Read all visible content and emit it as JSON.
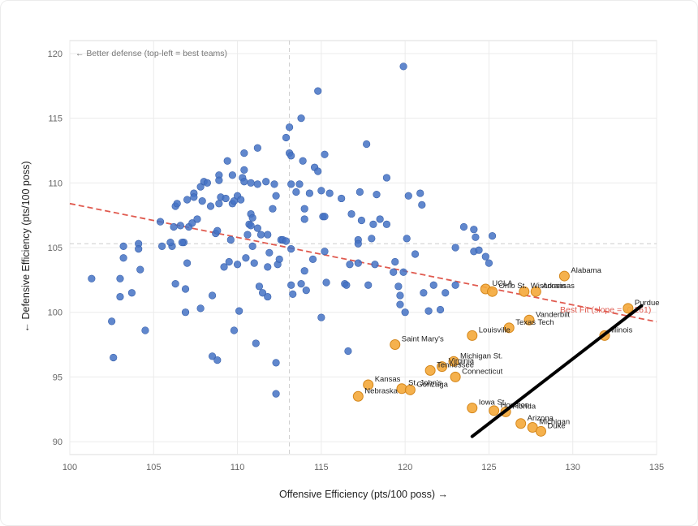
{
  "chart_data": {
    "type": "scatter",
    "title": "",
    "xlabel": "Offensive Efficiency (pts/100 poss) →",
    "ylabel": "← Defensive Efficiency (pts/100 poss)",
    "xlim": [
      100,
      135
    ],
    "ylim": [
      89,
      121
    ],
    "xticks": [
      100,
      105,
      110,
      115,
      120,
      125,
      130,
      135
    ],
    "yticks": [
      90,
      95,
      100,
      105,
      110,
      115,
      120
    ],
    "grid": true,
    "mean_lines": {
      "x": 113.1,
      "y": 105.3
    },
    "annotation": "← Better defense (top-left = best teams)",
    "fit_line": {
      "label": "Best Fit (slope = -0.261)",
      "slope": -0.261,
      "intercept": 134.5,
      "x_range": [
        100,
        135
      ]
    },
    "series": [
      {
        "name": "Other teams",
        "color": "#4472c4",
        "points": [
          [
            101.3,
            102.6
          ],
          [
            102.5,
            99.3
          ],
          [
            102.6,
            96.5
          ],
          [
            103.0,
            101.2
          ],
          [
            103.0,
            102.6
          ],
          [
            103.2,
            104.2
          ],
          [
            103.2,
            105.1
          ],
          [
            103.7,
            101.5
          ],
          [
            104.1,
            105.3
          ],
          [
            104.2,
            103.3
          ],
          [
            104.5,
            98.6
          ],
          [
            104.1,
            104.9
          ],
          [
            105.4,
            107.0
          ],
          [
            105.5,
            105.1
          ],
          [
            106.1,
            105.1
          ],
          [
            106.2,
            106.6
          ],
          [
            106.3,
            108.2
          ],
          [
            106.4,
            108.4
          ],
          [
            106.6,
            106.7
          ],
          [
            106.8,
            105.4
          ],
          [
            106.7,
            105.4
          ],
          [
            107.0,
            108.7
          ],
          [
            107.1,
            106.6
          ],
          [
            107.3,
            106.9
          ],
          [
            107.4,
            109.2
          ],
          [
            107.4,
            108.9
          ],
          [
            107.6,
            107.2
          ],
          [
            107.8,
            109.7
          ],
          [
            107.9,
            108.6
          ],
          [
            107.8,
            100.3
          ],
          [
            107.0,
            103.8
          ],
          [
            106.9,
            101.8
          ],
          [
            106.9,
            100.0
          ],
          [
            106.3,
            102.2
          ],
          [
            106.0,
            105.4
          ],
          [
            108.0,
            110.1
          ],
          [
            108.2,
            110.0
          ],
          [
            108.4,
            108.2
          ],
          [
            108.5,
            101.3
          ],
          [
            108.5,
            96.6
          ],
          [
            108.7,
            106.1
          ],
          [
            108.8,
            106.3
          ],
          [
            108.9,
            108.4
          ],
          [
            108.8,
            96.3
          ],
          [
            108.9,
            110.6
          ],
          [
            108.9,
            110.2
          ],
          [
            109.0,
            108.9
          ],
          [
            109.2,
            103.5
          ],
          [
            109.3,
            108.8
          ],
          [
            109.4,
            111.7
          ],
          [
            109.6,
            105.6
          ],
          [
            109.5,
            103.9
          ],
          [
            109.7,
            108.4
          ],
          [
            109.8,
            108.6
          ],
          [
            109.8,
            98.6
          ],
          [
            109.7,
            110.6
          ],
          [
            110.0,
            109.0
          ],
          [
            110.0,
            103.7
          ],
          [
            110.1,
            100.1
          ],
          [
            110.2,
            108.7
          ],
          [
            110.3,
            110.4
          ],
          [
            110.4,
            112.3
          ],
          [
            110.4,
            111.0
          ],
          [
            110.4,
            110.1
          ],
          [
            110.5,
            104.2
          ],
          [
            110.6,
            106.0
          ],
          [
            110.7,
            106.8
          ],
          [
            110.8,
            106.7
          ],
          [
            110.8,
            107.6
          ],
          [
            110.9,
            107.3
          ],
          [
            110.8,
            110.0
          ],
          [
            110.9,
            105.1
          ],
          [
            111.0,
            103.8
          ],
          [
            111.1,
            97.6
          ],
          [
            111.2,
            109.9
          ],
          [
            111.2,
            106.5
          ],
          [
            111.2,
            112.7
          ],
          [
            111.3,
            102.0
          ],
          [
            111.4,
            106.0
          ],
          [
            111.5,
            101.5
          ],
          [
            111.7,
            110.1
          ],
          [
            111.8,
            106.0
          ],
          [
            111.9,
            104.6
          ],
          [
            111.8,
            103.5
          ],
          [
            111.8,
            101.2
          ],
          [
            112.1,
            108.0
          ],
          [
            112.2,
            109.9
          ],
          [
            112.3,
            96.1
          ],
          [
            112.3,
            109.0
          ],
          [
            112.3,
            93.7
          ],
          [
            112.4,
            103.7
          ],
          [
            112.5,
            104.1
          ],
          [
            112.6,
            105.6
          ],
          [
            112.7,
            105.6
          ],
          [
            112.9,
            105.5
          ],
          [
            112.9,
            113.5
          ],
          [
            113.1,
            114.3
          ],
          [
            113.1,
            112.3
          ],
          [
            113.2,
            112.1
          ],
          [
            113.2,
            109.9
          ],
          [
            113.2,
            104.9
          ],
          [
            113.2,
            102.1
          ],
          [
            113.3,
            101.4
          ],
          [
            113.5,
            109.3
          ],
          [
            113.7,
            109.9
          ],
          [
            113.8,
            102.2
          ],
          [
            113.8,
            115.0
          ],
          [
            113.9,
            111.7
          ],
          [
            114.0,
            108.0
          ],
          [
            114.0,
            107.2
          ],
          [
            114.0,
            103.2
          ],
          [
            114.1,
            101.7
          ],
          [
            114.3,
            109.2
          ],
          [
            114.5,
            104.1
          ],
          [
            114.6,
            111.2
          ],
          [
            114.8,
            110.9
          ],
          [
            114.8,
            117.1
          ],
          [
            115.0,
            109.4
          ],
          [
            115.0,
            99.6
          ],
          [
            115.1,
            107.4
          ],
          [
            115.2,
            112.2
          ],
          [
            115.2,
            107.4
          ],
          [
            115.3,
            102.3
          ],
          [
            115.2,
            104.7
          ],
          [
            115.5,
            109.2
          ],
          [
            116.2,
            108.8
          ],
          [
            116.4,
            102.2
          ],
          [
            116.5,
            102.1
          ],
          [
            116.6,
            97.0
          ],
          [
            116.7,
            103.7
          ],
          [
            116.8,
            107.6
          ],
          [
            117.2,
            105.6
          ],
          [
            117.2,
            105.3
          ],
          [
            117.3,
            109.3
          ],
          [
            117.4,
            107.1
          ],
          [
            117.2,
            103.8
          ],
          [
            117.7,
            113.0
          ],
          [
            117.8,
            102.1
          ],
          [
            118.0,
            105.7
          ],
          [
            118.1,
            106.8
          ],
          [
            118.2,
            103.7
          ],
          [
            118.3,
            109.1
          ],
          [
            118.5,
            107.2
          ],
          [
            118.9,
            106.8
          ],
          [
            118.9,
            110.4
          ],
          [
            119.3,
            103.1
          ],
          [
            119.4,
            103.9
          ],
          [
            119.6,
            102.0
          ],
          [
            119.7,
            100.6
          ],
          [
            119.7,
            101.3
          ],
          [
            119.9,
            103.1
          ],
          [
            120.0,
            100.0
          ],
          [
            120.1,
            105.7
          ],
          [
            120.2,
            109.0
          ],
          [
            120.6,
            104.5
          ],
          [
            120.9,
            109.2
          ],
          [
            121.0,
            108.3
          ],
          [
            121.1,
            101.5
          ],
          [
            121.4,
            100.1
          ],
          [
            121.7,
            102.1
          ],
          [
            122.1,
            100.2
          ],
          [
            119.9,
            119.0
          ],
          [
            123.0,
            105.0
          ],
          [
            123.5,
            106.6
          ],
          [
            124.1,
            106.4
          ],
          [
            124.2,
            105.8
          ],
          [
            124.1,
            104.7
          ],
          [
            124.4,
            104.8
          ],
          [
            124.8,
            104.3
          ],
          [
            125.0,
            103.8
          ],
          [
            125.2,
            105.9
          ],
          [
            123.0,
            102.1
          ],
          [
            122.4,
            101.5
          ]
        ]
      },
      {
        "name": "Highlighted teams",
        "color": "#f4a93a",
        "points": [
          {
            "team": "Alabama",
            "x": 129.5,
            "y": 102.8
          },
          {
            "team": "Purdue",
            "x": 133.3,
            "y": 100.3
          },
          {
            "team": "Illinois",
            "x": 131.9,
            "y": 98.2
          },
          {
            "team": "UCLA",
            "x": 124.8,
            "y": 101.8
          },
          {
            "team": "Ohio St.",
            "x": 125.2,
            "y": 101.6
          },
          {
            "team": "Wisconsin",
            "x": 127.1,
            "y": 101.6
          },
          {
            "team": "Arkansas",
            "x": 127.8,
            "y": 101.6
          },
          {
            "team": "Vanderbilt",
            "x": 127.4,
            "y": 99.4
          },
          {
            "team": "Texas Tech",
            "x": 126.2,
            "y": 98.8
          },
          {
            "team": "Louisville",
            "x": 124.0,
            "y": 98.2
          },
          {
            "team": "Saint Mary's",
            "x": 119.4,
            "y": 97.5
          },
          {
            "team": "Michigan St.",
            "x": 122.9,
            "y": 96.2
          },
          {
            "team": "Virginia",
            "x": 122.2,
            "y": 95.8
          },
          {
            "team": "Tennessee",
            "x": 121.5,
            "y": 95.5
          },
          {
            "team": "Connecticut",
            "x": 123.0,
            "y": 95.0
          },
          {
            "team": "Kansas",
            "x": 117.8,
            "y": 94.4
          },
          {
            "team": "St. John's",
            "x": 119.8,
            "y": 94.1
          },
          {
            "team": "Gonzaga",
            "x": 120.3,
            "y": 94.0
          },
          {
            "team": "Nebraska",
            "x": 117.2,
            "y": 93.5
          },
          {
            "team": "Iowa St.",
            "x": 124.0,
            "y": 92.6
          },
          {
            "team": "Houston",
            "x": 125.3,
            "y": 92.4
          },
          {
            "team": "Florida",
            "x": 126.0,
            "y": 92.3
          },
          {
            "team": "Arizona",
            "x": 126.9,
            "y": 91.4
          },
          {
            "team": "Michigan",
            "x": 127.6,
            "y": 91.1
          },
          {
            "team": "Duke",
            "x": 128.1,
            "y": 90.8
          }
        ]
      }
    ],
    "overlay_stroke": {
      "from": [
        124.0,
        90.4
      ],
      "to": [
        134.1,
        100.5
      ],
      "color": "#000000"
    }
  }
}
